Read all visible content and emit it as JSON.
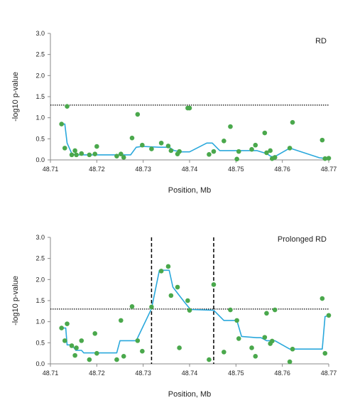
{
  "chart_data": [
    {
      "type": "scatter",
      "title": "",
      "panel_label": "RD",
      "xlabel": "Position, Mb",
      "ylabel": "-log10 p-value",
      "xlim": [
        48.71,
        48.77
      ],
      "ylim": [
        0.0,
        3.0
      ],
      "xticks": [
        "48.71",
        "48.72",
        "48.73",
        "48.74",
        "48.75",
        "48.76",
        "48.77"
      ],
      "yticks": [
        "0.0",
        "0.5",
        "1.0",
        "1.5",
        "2.0",
        "2.5",
        "3.0"
      ],
      "threshold": 1.3,
      "vlines": [],
      "grid": false,
      "legend": "none",
      "colors": {
        "points": "#4aa84c",
        "line": "#2aa8dc",
        "threshold": "#000000"
      },
      "points": {
        "x": [
          48.7124,
          48.7131,
          48.7136,
          48.7146,
          48.7153,
          48.7156,
          48.7167,
          48.7184,
          48.7196,
          48.72,
          48.7243,
          48.7252,
          48.7258,
          48.7276,
          48.7288,
          48.7298,
          48.7318,
          48.7339,
          48.7354,
          48.736,
          48.7374,
          48.7378,
          48.7396,
          48.74,
          48.7442,
          48.7452,
          48.7474,
          48.7488,
          48.7502,
          48.7506,
          48.7534,
          48.7542,
          48.7562,
          48.7566,
          48.7574,
          48.7578,
          48.7584,
          48.7616,
          48.7622,
          48.7686,
          48.7692,
          48.77
        ],
        "y": [
          0.85,
          0.28,
          1.27,
          0.12,
          0.22,
          0.12,
          0.15,
          0.12,
          0.14,
          0.32,
          0.09,
          0.14,
          0.06,
          0.52,
          1.08,
          0.35,
          0.26,
          0.4,
          0.33,
          0.22,
          0.14,
          0.2,
          1.23,
          1.23,
          0.13,
          0.2,
          0.45,
          0.79,
          0.02,
          0.2,
          0.25,
          0.35,
          0.64,
          0.17,
          0.22,
          0.03,
          0.06,
          0.28,
          0.89,
          0.47,
          0.03,
          0.04
        ]
      },
      "line": {
        "x": [
          48.7124,
          48.7131,
          48.7136,
          48.7146,
          48.7155,
          48.7167,
          48.72,
          48.725,
          48.7273,
          48.7285,
          48.7298,
          48.7335,
          48.7356,
          48.7367,
          48.7382,
          48.74,
          48.7437,
          48.7449,
          48.7465,
          48.7482,
          48.7506,
          48.7545,
          48.7566,
          48.7576,
          48.7584,
          48.7616,
          48.768,
          48.7688,
          48.7693,
          48.77
        ],
        "y": [
          0.85,
          0.85,
          0.4,
          0.15,
          0.12,
          0.12,
          0.12,
          0.12,
          0.12,
          0.3,
          0.32,
          0.3,
          0.3,
          0.22,
          0.19,
          0.19,
          0.4,
          0.4,
          0.22,
          0.22,
          0.22,
          0.22,
          0.15,
          0.08,
          0.08,
          0.28,
          0.05,
          0.04,
          0.04,
          0.04
        ]
      }
    },
    {
      "type": "scatter",
      "title": "",
      "panel_label": "Prolonged RD",
      "xlabel": "Position, Mb",
      "ylabel": "-log10 p-value",
      "xlim": [
        48.71,
        48.77
      ],
      "ylim": [
        0.0,
        3.0
      ],
      "xticks": [
        "48.71",
        "48.72",
        "48.73",
        "48.74",
        "48.75",
        "48.76",
        "48.77"
      ],
      "yticks": [
        "0.0",
        "0.5",
        "1.0",
        "1.5",
        "2.0",
        "2.5",
        "3.0"
      ],
      "threshold": 1.3,
      "vlines": [
        48.7318,
        48.7452
      ],
      "grid": false,
      "legend": "none",
      "colors": {
        "points": "#4aa84c",
        "line": "#2aa8dc",
        "threshold": "#000000"
      },
      "points": {
        "x": [
          48.7124,
          48.7131,
          48.7136,
          48.7146,
          48.7153,
          48.7156,
          48.7167,
          48.7184,
          48.7196,
          48.72,
          48.7243,
          48.7252,
          48.7258,
          48.7276,
          48.7288,
          48.7298,
          48.7318,
          48.7339,
          48.7354,
          48.736,
          48.7374,
          48.7378,
          48.7396,
          48.74,
          48.7442,
          48.7452,
          48.7474,
          48.7488,
          48.7502,
          48.7506,
          48.7534,
          48.7542,
          48.7562,
          48.7566,
          48.7574,
          48.7578,
          48.7584,
          48.7616,
          48.7622,
          48.7686,
          48.7692,
          48.77
        ],
        "y": [
          0.85,
          0.55,
          0.95,
          0.43,
          0.2,
          0.38,
          0.55,
          0.1,
          0.72,
          0.25,
          0.1,
          1.03,
          0.18,
          1.36,
          0.55,
          0.3,
          1.35,
          2.2,
          2.31,
          1.62,
          1.82,
          0.38,
          1.5,
          1.27,
          0.1,
          1.88,
          0.28,
          1.28,
          1.03,
          0.6,
          0.38,
          0.18,
          0.63,
          1.2,
          0.48,
          0.54,
          1.28,
          0.05,
          0.35,
          1.55,
          0.25,
          1.15
        ]
      },
      "line": {
        "x": [
          48.7124,
          48.7133,
          48.7136,
          48.7146,
          48.7155,
          48.7167,
          48.7172,
          48.72,
          48.7243,
          48.725,
          48.7275,
          48.7285,
          48.7318,
          48.7335,
          48.7356,
          48.7364,
          48.7378,
          48.739,
          48.7402,
          48.7452,
          48.7474,
          48.7484,
          48.7502,
          48.7512,
          48.7545,
          48.7554,
          48.7566,
          48.7575,
          48.7584,
          48.7616,
          48.7686,
          48.7692,
          48.77
        ],
        "y": [
          0.85,
          0.85,
          0.45,
          0.45,
          0.32,
          0.32,
          0.26,
          0.26,
          0.26,
          0.55,
          0.55,
          0.55,
          1.31,
          2.22,
          2.22,
          1.82,
          1.62,
          1.45,
          1.29,
          1.27,
          1.03,
          1.03,
          1.03,
          0.65,
          0.62,
          0.62,
          0.55,
          0.55,
          0.55,
          0.35,
          0.35,
          1.12,
          1.15
        ]
      }
    }
  ]
}
